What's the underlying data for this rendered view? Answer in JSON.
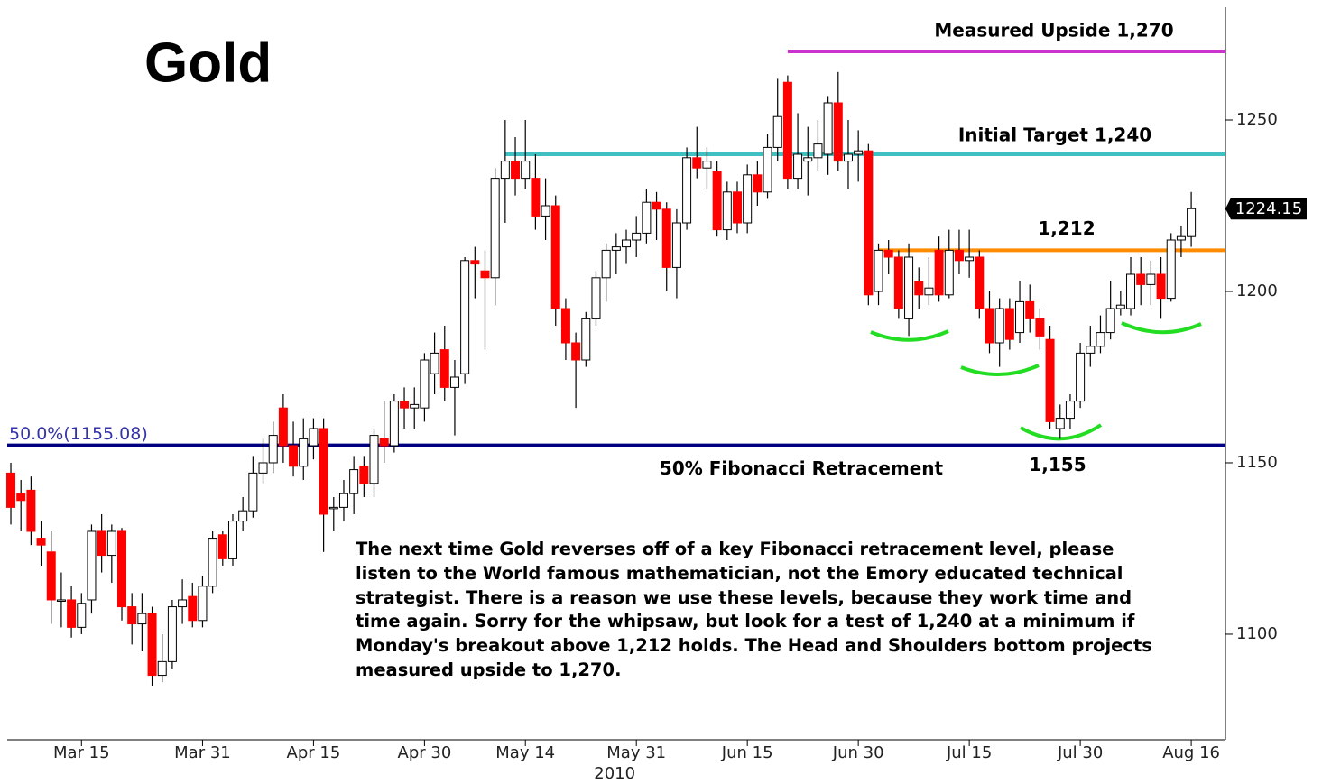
{
  "chart_data": {
    "type": "candlestick",
    "title": "Gold",
    "open": [
      1147,
      1141,
      1142,
      1128,
      1124,
      1110,
      1110,
      1102,
      1110,
      1130,
      1123,
      1130,
      1108,
      1103,
      1106,
      1088,
      1092,
      1108,
      1111,
      1104,
      1114,
      1129,
      1122,
      1133,
      1136,
      1147,
      1150,
      1166,
      1155,
      1149,
      1155,
      1160,
      1137,
      1137,
      1141,
      1149,
      1144,
      1157,
      1155,
      1168,
      1166,
      1166,
      1176,
      1183,
      1172,
      1176,
      1209,
      1206,
      1204,
      1233,
      1238,
      1233,
      1233,
      1222,
      1225,
      1195,
      1185,
      1180,
      1192,
      1204,
      1212,
      1213,
      1215,
      1217,
      1226,
      1224,
      1207,
      1220,
      1239,
      1236,
      1235,
      1218,
      1229,
      1220,
      1234,
      1229,
      1242,
      1261,
      1233,
      1238,
      1239,
      1240,
      1255,
      1238,
      1240,
      1241,
      1200,
      1212,
      1210,
      1192,
      1203,
      1199,
      1212,
      1199,
      1212,
      1209,
      1210,
      1195,
      1185,
      1195,
      1188,
      1197,
      1192,
      1186,
      1160,
      1163,
      1168,
      1182,
      1184,
      1188,
      1195,
      1195,
      1205,
      1202,
      1205,
      1198,
      1215,
      1216
    ],
    "high": [
      1150,
      1145,
      1146,
      1133,
      1130,
      1118,
      1114,
      1112,
      1132,
      1135,
      1132,
      1131,
      1112,
      1112,
      1108,
      1100,
      1110,
      1116,
      1115,
      1117,
      1130,
      1130,
      1135,
      1140,
      1152,
      1157,
      1162,
      1170,
      1162,
      1163,
      1163,
      1163,
      1140,
      1145,
      1152,
      1152,
      1160,
      1168,
      1170,
      1172,
      1172,
      1182,
      1188,
      1190,
      1180,
      1210,
      1213,
      1212,
      1236,
      1250,
      1245,
      1250,
      1240,
      1233,
      1228,
      1198,
      1188,
      1194,
      1206,
      1214,
      1217,
      1218,
      1222,
      1230,
      1229,
      1226,
      1224,
      1242,
      1248,
      1242,
      1238,
      1232,
      1232,
      1237,
      1238,
      1246,
      1262,
      1263,
      1252,
      1248,
      1250,
      1257,
      1264,
      1250,
      1247,
      1243,
      1214,
      1215,
      1212,
      1214,
      1207,
      1210,
      1216,
      1218,
      1218,
      1218,
      1212,
      1200,
      1198,
      1198,
      1203,
      1202,
      1195,
      1190,
      1167,
      1170,
      1185,
      1190,
      1193,
      1203,
      1200,
      1210,
      1210,
      1209,
      1210,
      1217,
      1219,
      1229
    ],
    "low": [
      1132,
      1130,
      1126,
      1120,
      1103,
      1102,
      1099,
      1100,
      1106,
      1118,
      1115,
      1104,
      1097,
      1095,
      1085,
      1086,
      1090,
      1103,
      1102,
      1102,
      1112,
      1120,
      1120,
      1130,
      1134,
      1144,
      1147,
      1150,
      1146,
      1145,
      1151,
      1124,
      1130,
      1133,
      1135,
      1140,
      1140,
      1150,
      1153,
      1160,
      1160,
      1162,
      1170,
      1168,
      1158,
      1173,
      1198,
      1183,
      1196,
      1220,
      1228,
      1230,
      1218,
      1215,
      1190,
      1180,
      1166,
      1178,
      1190,
      1197,
      1205,
      1208,
      1210,
      1214,
      1215,
      1200,
      1198,
      1218,
      1233,
      1230,
      1216,
      1215,
      1217,
      1217,
      1225,
      1227,
      1238,
      1230,
      1230,
      1228,
      1235,
      1234,
      1235,
      1230,
      1232,
      1196,
      1196,
      1205,
      1192,
      1187,
      1195,
      1196,
      1197,
      1198,
      1205,
      1204,
      1192,
      1182,
      1178,
      1183,
      1185,
      1188,
      1183,
      1160,
      1157,
      1160,
      1166,
      1178,
      1182,
      1186,
      1193,
      1193,
      1196,
      1196,
      1192,
      1197,
      1210,
      1213
    ],
    "close": [
      1137,
      1139,
      1130,
      1126,
      1110,
      1110,
      1102,
      1109,
      1130,
      1123,
      1130,
      1108,
      1103,
      1106,
      1088,
      1092,
      1108,
      1110,
      1104,
      1114,
      1128,
      1122,
      1133,
      1136,
      1147,
      1150,
      1158,
      1155,
      1149,
      1157,
      1160,
      1135,
      1137,
      1141,
      1148,
      1144,
      1158,
      1155,
      1168,
      1166,
      1167,
      1180,
      1182,
      1172,
      1175,
      1209,
      1208,
      1204,
      1233,
      1238,
      1233,
      1238,
      1222,
      1225,
      1195,
      1185,
      1180,
      1192,
      1204,
      1212,
      1213,
      1215,
      1217,
      1226,
      1224,
      1207,
      1220,
      1239,
      1236,
      1238,
      1218,
      1229,
      1220,
      1234,
      1229,
      1242,
      1251,
      1233,
      1240,
      1239,
      1243,
      1255,
      1238,
      1240,
      1241,
      1199,
      1212,
      1210,
      1195,
      1210,
      1199,
      1201,
      1199,
      1212,
      1209,
      1210,
      1195,
      1185,
      1195,
      1186,
      1197,
      1192,
      1187,
      1162,
      1163,
      1168,
      1182,
      1184,
      1188,
      1195,
      1196,
      1205,
      1202,
      1205,
      1198,
      1215,
      1216,
      1224.15
    ],
    "up_color": "#ffffff",
    "down_color": "#ff0000",
    "xlim": [
      -0.36,
      120.39
    ],
    "xticks": [
      {
        "value": 7,
        "label": "Mar 15"
      },
      {
        "value": 19,
        "label": "Mar 31"
      },
      {
        "value": 30,
        "label": "Apr 15"
      },
      {
        "value": 41,
        "label": "Apr 30"
      },
      {
        "value": 51,
        "label": "May 14"
      },
      {
        "value": 62,
        "label": "May 31"
      },
      {
        "value": 73,
        "label": "Jun 15"
      },
      {
        "value": 84,
        "label": "Jun 30"
      },
      {
        "value": 95,
        "label": "Jul 15"
      },
      {
        "value": 106,
        "label": "Jul 30"
      },
      {
        "value": 117,
        "label": "Aug 16"
      }
    ],
    "x_year_label": "2010",
    "ylim": [
      1069.2,
      1282.9
    ],
    "yticks": [
      1100,
      1150,
      1200,
      1250
    ],
    "levels": [
      {
        "value": 1270,
        "label": "Measured Upside 1,270",
        "color": "#cc33cc",
        "from": 77
      },
      {
        "value": 1240,
        "label": "Initial Target 1,240",
        "color": "#40c0c0",
        "from": 49
      },
      {
        "value": 1212,
        "label": "1,212",
        "color": "#ff8c00",
        "from": 86
      },
      {
        "value": 1155.08,
        "label": "50.0%(1155.08)",
        "color": "#000080"
      }
    ],
    "annotations": [
      "50% Fibonacci Retracement",
      "1,155"
    ],
    "note_lines": [
      "The next time Gold reverses off of a key Fibonacci retracement level, please",
      "listen to the World famous mathematician, not the Emory educated technical",
      "strategist. There is a reason we use these levels, because they work time and",
      "time again. Sorry for the whipsaw, but look for a test of 1,240 at a minimum if",
      "Monday's breakout above 1,212 holds. The Head and Shoulders bottom projects",
      "measured upside to 1,270."
    ]
  }
}
